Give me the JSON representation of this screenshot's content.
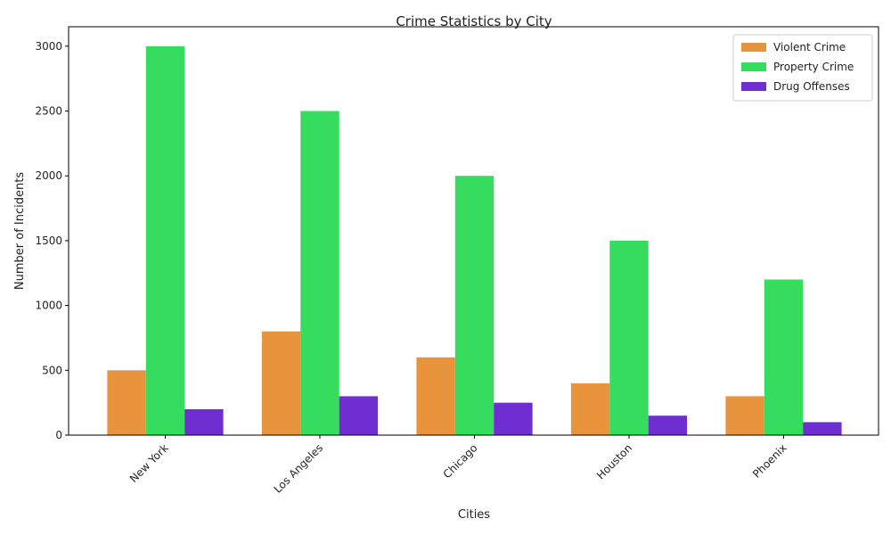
{
  "chart_data": {
    "type": "bar",
    "title": "Crime Statistics by City",
    "xlabel": "Cities",
    "ylabel": "Number of Incidents",
    "categories": [
      "New York",
      "Los Angeles",
      "Chicago",
      "Houston",
      "Phoenix"
    ],
    "series": [
      {
        "name": "Violent Crime",
        "values": [
          500,
          800,
          600,
          400,
          300
        ],
        "color": "#e8943c"
      },
      {
        "name": "Property Crime",
        "values": [
          3000,
          2500,
          2000,
          1500,
          1200
        ],
        "color": "#36dc5e"
      },
      {
        "name": "Drug Offenses",
        "values": [
          200,
          300,
          250,
          150,
          100
        ],
        "color": "#6f2fd0"
      }
    ],
    "ylim": [
      0,
      3150
    ],
    "yticks": [
      0,
      500,
      1000,
      1500,
      2000,
      2500,
      3000
    ],
    "grid": false,
    "legend_position": "top-right"
  }
}
